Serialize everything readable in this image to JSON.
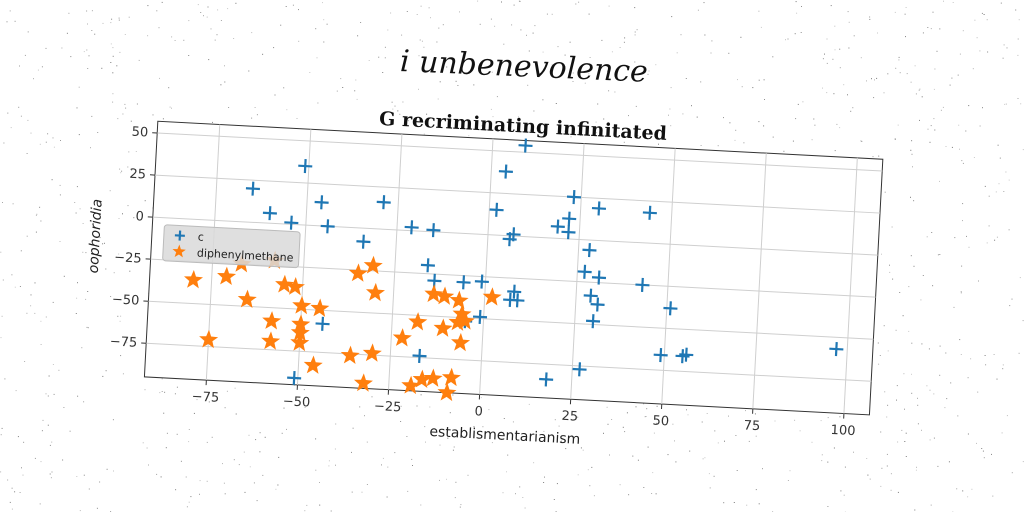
{
  "figure": {
    "suptitle": "i unbenevolence"
  },
  "chart_data": {
    "type": "scatter",
    "title": "G recriminating infinitated",
    "xlabel": "establismentarianism",
    "ylabel": "oophoridia",
    "xlim": [
      -92,
      107
    ],
    "ylim": [
      -95,
      57
    ],
    "xticks": [
      -75,
      -50,
      -25,
      0,
      25,
      50,
      75,
      100
    ],
    "yticks": [
      50,
      25,
      0,
      -25,
      -50,
      -75
    ],
    "grid": true,
    "legend_placement": "center-left",
    "series": [
      {
        "name": "c",
        "marker": "plus",
        "color": "#1f77b4",
        "points": [
          [
            9,
            54
          ],
          [
            -51,
            35
          ],
          [
            4,
            38
          ],
          [
            -65,
            20
          ],
          [
            23,
            25
          ],
          [
            -46,
            14
          ],
          [
            30,
            19
          ],
          [
            44,
            18
          ],
          [
            -60,
            6
          ],
          [
            -29,
            16
          ],
          [
            2,
            15
          ],
          [
            22,
            12
          ],
          [
            -54,
            1
          ],
          [
            -44,
            0
          ],
          [
            -21,
            2
          ],
          [
            -15,
            1
          ],
          [
            19,
            7
          ],
          [
            22,
            4
          ],
          [
            7,
            1
          ],
          [
            6,
            -2
          ],
          [
            28,
            -6
          ],
          [
            -34,
            -8
          ],
          [
            -16,
            -20
          ],
          [
            27,
            -19
          ],
          [
            31,
            -22
          ],
          [
            43,
            -25
          ],
          [
            -14,
            -29
          ],
          [
            -6,
            -29
          ],
          [
            -1,
            -28
          ],
          [
            8,
            -33
          ],
          [
            29,
            -33
          ],
          [
            7,
            -38
          ],
          [
            9,
            -38
          ],
          [
            31,
            -38
          ],
          [
            51,
            -38
          ],
          [
            -1,
            -49
          ],
          [
            30,
            -48
          ],
          [
            -44,
            -58
          ],
          [
            49,
            -66
          ],
          [
            55,
            -66
          ],
          [
            56,
            -65
          ],
          [
            97,
            -57
          ],
          [
            -17,
            -74
          ],
          [
            27,
            -77
          ],
          [
            18,
            -84
          ],
          [
            -51,
            -91
          ],
          [
            -5,
            -52
          ]
        ]
      },
      {
        "name": "diphenylmethane",
        "marker": "star",
        "color": "#ff7f0e",
        "points": [
          [
            -67,
            -25
          ],
          [
            -58,
            -22
          ],
          [
            -35,
            -27
          ],
          [
            -31,
            -22
          ],
          [
            -80,
            -36
          ],
          [
            -71,
            -33
          ],
          [
            -55,
            -36
          ],
          [
            -52,
            -37
          ],
          [
            -30,
            -38
          ],
          [
            -14,
            -37
          ],
          [
            -11,
            -38
          ],
          [
            -7,
            -40
          ],
          [
            2,
            -37
          ],
          [
            -65,
            -46
          ],
          [
            -50,
            -48
          ],
          [
            -45,
            -49
          ],
          [
            -6,
            -48
          ],
          [
            -5,
            -52
          ],
          [
            -18,
            -54
          ],
          [
            -11,
            -57
          ],
          [
            -7,
            -53
          ],
          [
            -58,
            -58
          ],
          [
            -50,
            -59
          ],
          [
            -50,
            -64
          ],
          [
            -22,
            -64
          ],
          [
            -6,
            -65
          ],
          [
            -75,
            -71
          ],
          [
            -58,
            -70
          ],
          [
            -50,
            -70
          ],
          [
            -36,
            -76
          ],
          [
            -30,
            -74
          ],
          [
            -46,
            -83
          ],
          [
            -16,
            -88
          ],
          [
            -13,
            -87
          ],
          [
            -8,
            -86
          ],
          [
            -19,
            -92
          ],
          [
            -32,
            -92
          ],
          [
            -9,
            -95
          ]
        ]
      }
    ]
  }
}
